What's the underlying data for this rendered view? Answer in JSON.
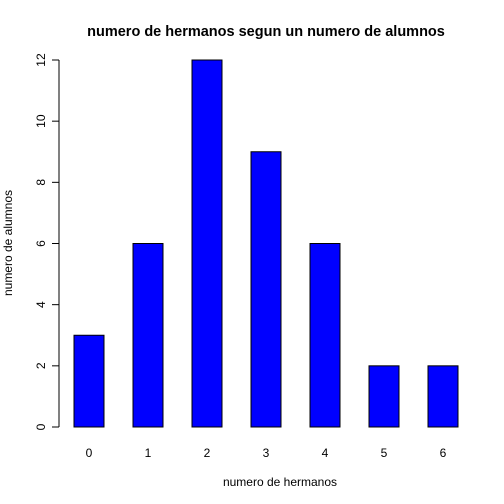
{
  "chart_data": {
    "type": "bar",
    "title": "numero de hermanos segun un numero de alumnos",
    "xlabel": "numero de hermanos",
    "ylabel": "numero de alumnos",
    "categories": [
      "0",
      "1",
      "2",
      "3",
      "4",
      "5",
      "6"
    ],
    "values": [
      3,
      6,
      12,
      9,
      6,
      2,
      2
    ],
    "ylim": [
      0,
      12
    ],
    "yticks": [
      "0",
      "2",
      "4",
      "6",
      "8",
      "10",
      "12"
    ],
    "bar_color": "#0000ff",
    "grid": false,
    "legend": "none"
  }
}
